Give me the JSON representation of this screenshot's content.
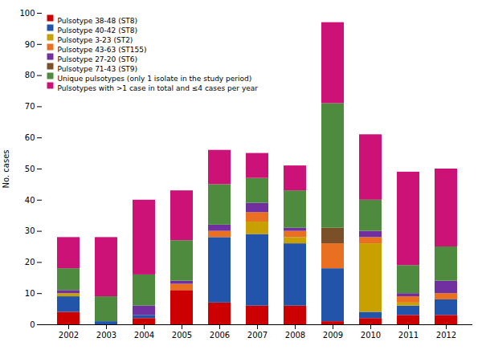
{
  "chart_data": {
    "type": "bar",
    "stacked": true,
    "grid": false,
    "legend": "upper left",
    "ylabel": "No. cases",
    "categories": [
      "2002",
      "2003",
      "2004",
      "2005",
      "2006",
      "2007",
      "2008",
      "2009",
      "2010",
      "2011",
      "2012"
    ],
    "ylim": [
      0,
      100
    ],
    "yticks": [
      0,
      10,
      20,
      30,
      40,
      50,
      60,
      70,
      80,
      90,
      100
    ],
    "series": [
      {
        "name": "Pulsotype 38-48 (ST8)",
        "color": "#cc0000",
        "values": [
          4,
          0,
          2,
          11,
          7,
          6,
          6,
          1,
          2,
          3,
          3
        ]
      },
      {
        "name": "Pulsotype 40-42 (ST8)",
        "color": "#2255aa",
        "values": [
          5,
          1,
          1,
          0,
          21,
          23,
          20,
          17,
          2,
          3,
          5
        ]
      },
      {
        "name": "Pulsotype 3-23 (ST2)",
        "color": "#c8a000",
        "values": [
          1,
          0,
          0,
          0,
          0,
          4,
          2,
          0,
          22,
          1,
          0
        ]
      },
      {
        "name": "Pulsotype 43-63 (ST155)",
        "color": "#e87020",
        "values": [
          0,
          0,
          0,
          2,
          2,
          3,
          2,
          8,
          2,
          2,
          2
        ]
      },
      {
        "name": "Pulsotype 27-20 (ST6)",
        "color": "#7030a0",
        "values": [
          1,
          0,
          3,
          1,
          2,
          3,
          1,
          0,
          2,
          1,
          4
        ]
      },
      {
        "name": "Pulsotype 71-43 (ST9)",
        "color": "#7b4f28",
        "values": [
          0,
          0,
          0,
          0,
          0,
          0,
          0,
          5,
          0,
          0,
          0
        ]
      },
      {
        "name": "Unique pulsotypes (only 1 isolate in the study period)",
        "color": "#4e8b3f",
        "values": [
          7,
          8,
          10,
          13,
          13,
          8,
          12,
          40,
          10,
          9,
          11
        ]
      },
      {
        "name": "Pulsotypes with >1 case in total and ≤4 cases per year",
        "color": "#cc1177",
        "values": [
          10,
          19,
          24,
          16,
          11,
          8,
          8,
          26,
          21,
          30,
          25
        ]
      }
    ]
  }
}
